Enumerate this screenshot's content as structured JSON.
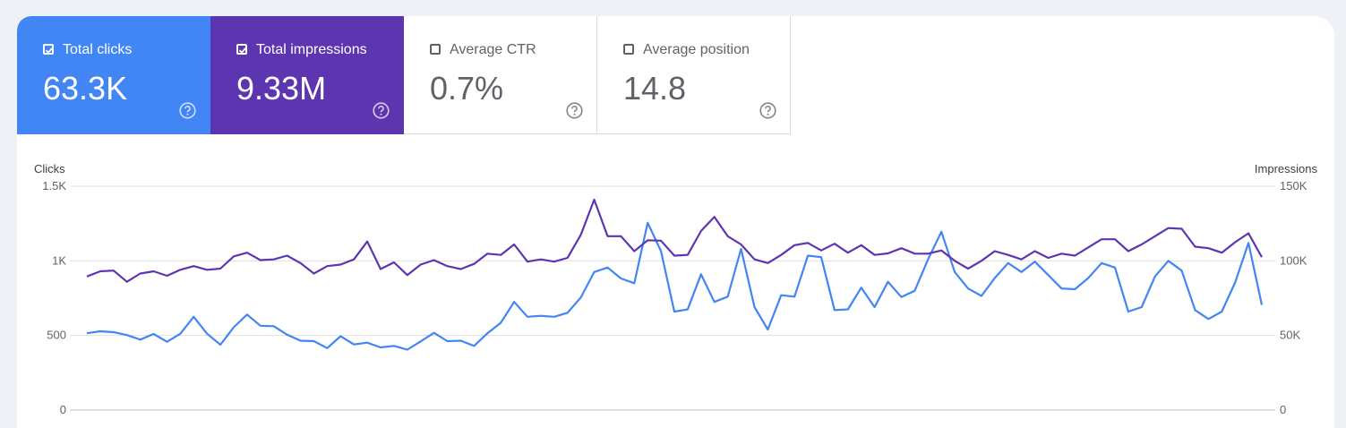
{
  "metrics": [
    {
      "label": "Total clicks",
      "value": "63.3K",
      "checked": true,
      "color": "#4285f4",
      "help_icon": "help-circle-icon"
    },
    {
      "label": "Total impressions",
      "value": "9.33M",
      "checked": true,
      "color": "#5e35b1",
      "help_icon": "help-circle-icon"
    },
    {
      "label": "Average CTR",
      "value": "0.7%",
      "checked": false,
      "color": "#ffffff",
      "help_icon": "help-circle-icon"
    },
    {
      "label": "Average position",
      "value": "14.8",
      "checked": false,
      "color": "#ffffff",
      "help_icon": "help-circle-icon"
    }
  ],
  "chart_data": {
    "type": "line",
    "y_left_title": "Clicks",
    "y_right_title": "Impressions",
    "y_left_ticks": [
      "0",
      "500",
      "1K",
      "1.5K"
    ],
    "y_right_ticks": [
      "0",
      "50K",
      "100K",
      "150K"
    ],
    "y_left_range": [
      0,
      1500
    ],
    "y_right_range": [
      0,
      150000
    ],
    "grid": true,
    "series": [
      {
        "axis": "left",
        "color": "#4285f4",
        "values": [
          515,
          528,
          522,
          503,
          472,
          510,
          458,
          512,
          625,
          512,
          438,
          555,
          640,
          565,
          562,
          505,
          465,
          462,
          415,
          495,
          440,
          452,
          420,
          430,
          405,
          460,
          518,
          462,
          465,
          430,
          515,
          585,
          725,
          625,
          632,
          625,
          652,
          755,
          925,
          955,
          882,
          850,
          1255,
          1065,
          660,
          675,
          910,
          725,
          760,
          1080,
          690,
          540,
          770,
          760,
          1035,
          1025,
          670,
          675,
          820,
          690,
          860,
          758,
          800,
          1010,
          1195,
          925,
          815,
          765,
          885,
          985,
          925,
          995,
          905,
          815,
          810,
          885,
          985,
          955,
          660,
          690,
          895,
          1000,
          935,
          670,
          610,
          660,
          855,
          1120,
          705
        ]
      },
      {
        "axis": "right",
        "color": "#5e35b1",
        "values": [
          89500,
          93000,
          93500,
          86000,
          91500,
          93000,
          90000,
          94000,
          96500,
          94000,
          94800,
          103000,
          105500,
          100500,
          101000,
          103500,
          98500,
          91500,
          96500,
          97500,
          101000,
          113000,
          94500,
          99000,
          90500,
          97500,
          100500,
          96500,
          94500,
          98000,
          104800,
          104000,
          111000,
          99500,
          101000,
          99500,
          102000,
          117500,
          141000,
          116500,
          116500,
          106500,
          113800,
          113500,
          103500,
          104000,
          120000,
          129500,
          116500,
          111000,
          101000,
          98500,
          104000,
          110500,
          112000,
          107000,
          111500,
          105500,
          110500,
          104000,
          105000,
          108500,
          104800,
          104800,
          107000,
          100000,
          94800,
          100000,
          106500,
          104000,
          101000,
          106500,
          102000,
          104800,
          103500,
          109000,
          114500,
          114500,
          106500,
          111000,
          116500,
          122000,
          121500,
          109500,
          108500,
          105500,
          112500,
          118500,
          102500
        ]
      }
    ]
  }
}
